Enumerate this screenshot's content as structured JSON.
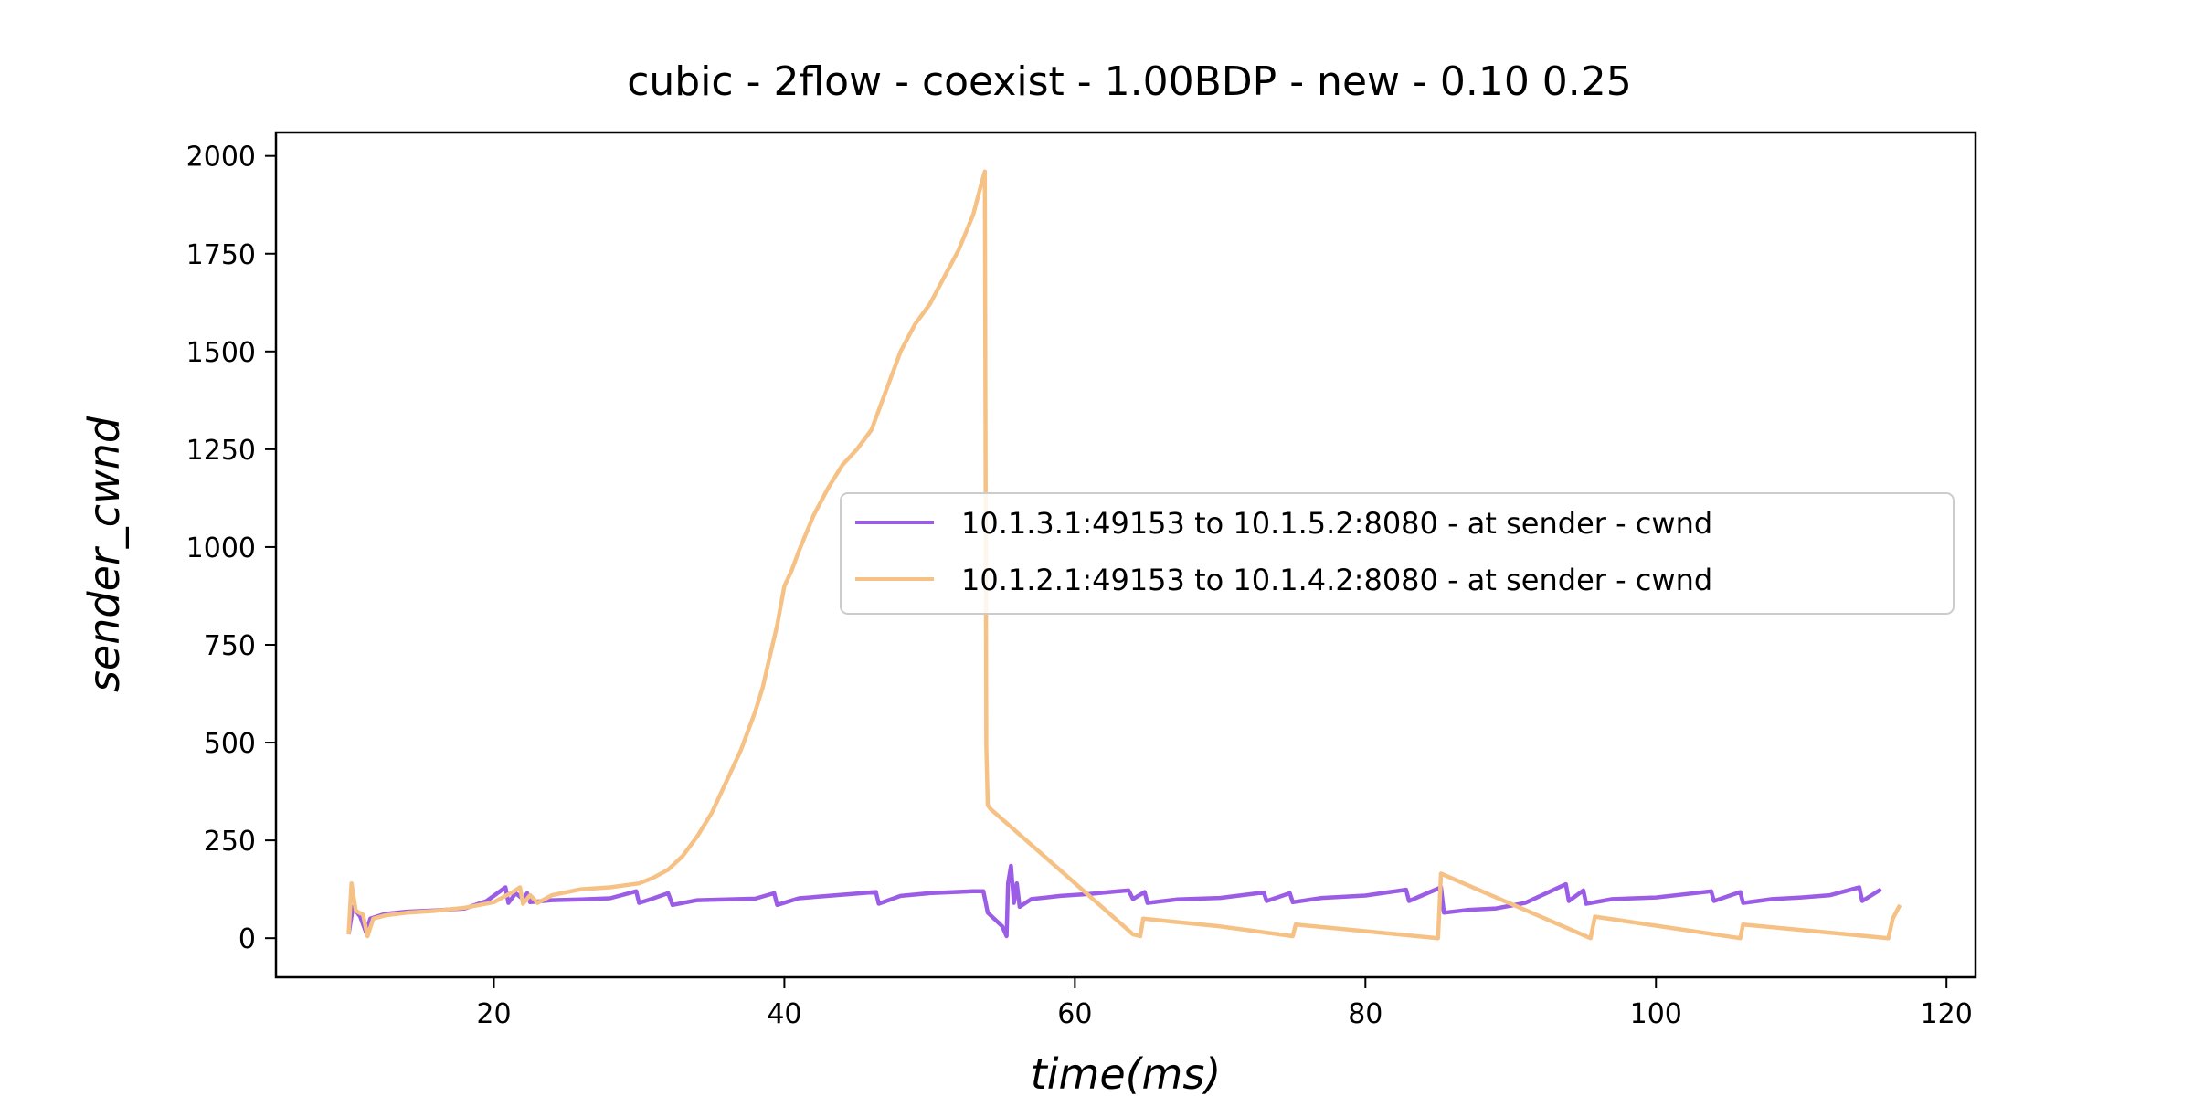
{
  "chart_data": {
    "type": "line",
    "title": "cubic - 2flow - coexist - 1.00BDP - new - 0.10 0.25",
    "xlabel": "time(ms)",
    "ylabel": "sender_cwnd",
    "xlim": [
      5,
      122
    ],
    "ylim": [
      -100,
      2060
    ],
    "xticks": [
      20,
      40,
      60,
      80,
      100,
      120
    ],
    "yticks": [
      0,
      250,
      500,
      750,
      1000,
      1250,
      1500,
      1750,
      2000
    ],
    "grid": false,
    "legend_position": "center-right",
    "series": [
      {
        "name": "10.1.3.1:49153 to 10.1.5.2:8080 - at sender - cwnd",
        "color": "#9b5de5",
        "points": [
          [
            10.0,
            10
          ],
          [
            10.3,
            80
          ],
          [
            10.8,
            55
          ],
          [
            11.2,
            15
          ],
          [
            11.5,
            50
          ],
          [
            12.5,
            62
          ],
          [
            14,
            68
          ],
          [
            16,
            71
          ],
          [
            18,
            76
          ],
          [
            19.5,
            95
          ],
          [
            20.8,
            130
          ],
          [
            21.0,
            90
          ],
          [
            21.5,
            115
          ],
          [
            22.0,
            100
          ],
          [
            22.3,
            115
          ],
          [
            22.5,
            92
          ],
          [
            24,
            97
          ],
          [
            26,
            99
          ],
          [
            28,
            102
          ],
          [
            29.8,
            120
          ],
          [
            30.0,
            90
          ],
          [
            31,
            102
          ],
          [
            32,
            115
          ],
          [
            32.3,
            85
          ],
          [
            34,
            97
          ],
          [
            36,
            99
          ],
          [
            38,
            101
          ],
          [
            39.3,
            115
          ],
          [
            39.5,
            85
          ],
          [
            41,
            102
          ],
          [
            43,
            108
          ],
          [
            46.3,
            118
          ],
          [
            46.5,
            88
          ],
          [
            48,
            108
          ],
          [
            50,
            115
          ],
          [
            53,
            120
          ],
          [
            53.5,
            120
          ],
          [
            53.7,
            120
          ],
          [
            54.0,
            65
          ],
          [
            55.0,
            30
          ],
          [
            55.3,
            5
          ],
          [
            55.4,
            140
          ],
          [
            55.6,
            185
          ],
          [
            55.8,
            90
          ],
          [
            56.0,
            140
          ],
          [
            56.2,
            80
          ],
          [
            57,
            100
          ],
          [
            59,
            108
          ],
          [
            61,
            113
          ],
          [
            63,
            120
          ],
          [
            63.7,
            122
          ],
          [
            64.0,
            100
          ],
          [
            64.8,
            118
          ],
          [
            65.0,
            90
          ],
          [
            67,
            99
          ],
          [
            70,
            103
          ],
          [
            73,
            117
          ],
          [
            73.2,
            95
          ],
          [
            74.8,
            115
          ],
          [
            75.0,
            92
          ],
          [
            77,
            103
          ],
          [
            80,
            109
          ],
          [
            82.8,
            124
          ],
          [
            83.0,
            95
          ],
          [
            85.2,
            130
          ],
          [
            85.4,
            65
          ],
          [
            87,
            72
          ],
          [
            89,
            76
          ],
          [
            91,
            90
          ],
          [
            93.8,
            138
          ],
          [
            94.0,
            95
          ],
          [
            95.0,
            122
          ],
          [
            95.2,
            88
          ],
          [
            97,
            100
          ],
          [
            100,
            104
          ],
          [
            103.8,
            120
          ],
          [
            104.0,
            95
          ],
          [
            105.8,
            118
          ],
          [
            106.0,
            90
          ],
          [
            108,
            100
          ],
          [
            110,
            104
          ],
          [
            112,
            110
          ],
          [
            114.0,
            130
          ],
          [
            114.2,
            95
          ],
          [
            115.5,
            125
          ]
        ]
      },
      {
        "name": "10.1.2.1:49153 to 10.1.4.2:8080 - at sender - cwnd",
        "color": "#f6c185",
        "points": [
          [
            10.0,
            10
          ],
          [
            10.2,
            140
          ],
          [
            10.5,
            70
          ],
          [
            11.0,
            60
          ],
          [
            11.3,
            5
          ],
          [
            11.7,
            50
          ],
          [
            12.5,
            58
          ],
          [
            14,
            65
          ],
          [
            16,
            70
          ],
          [
            18,
            78
          ],
          [
            20,
            92
          ],
          [
            21.3,
            118
          ],
          [
            21.8,
            130
          ],
          [
            22.0,
            88
          ],
          [
            22.5,
            110
          ],
          [
            23,
            90
          ],
          [
            24,
            110
          ],
          [
            26,
            125
          ],
          [
            28,
            130
          ],
          [
            30,
            140
          ],
          [
            31,
            155
          ],
          [
            32,
            175
          ],
          [
            33,
            210
          ],
          [
            34,
            260
          ],
          [
            35,
            320
          ],
          [
            36,
            400
          ],
          [
            37,
            480
          ],
          [
            38,
            580
          ],
          [
            38.5,
            640
          ],
          [
            39,
            720
          ],
          [
            39.5,
            800
          ],
          [
            40,
            900
          ],
          [
            40.5,
            940
          ],
          [
            41,
            990
          ],
          [
            42,
            1080
          ],
          [
            43,
            1150
          ],
          [
            44,
            1210
          ],
          [
            45,
            1250
          ],
          [
            46,
            1300
          ],
          [
            47,
            1400
          ],
          [
            48,
            1500
          ],
          [
            49,
            1570
          ],
          [
            50,
            1620
          ],
          [
            51,
            1690
          ],
          [
            52,
            1760
          ],
          [
            53,
            1850
          ],
          [
            53.5,
            1920
          ],
          [
            53.8,
            1960
          ],
          [
            53.9,
            490
          ],
          [
            54.0,
            340
          ],
          [
            54.2,
            330
          ],
          [
            64.0,
            10
          ],
          [
            64.5,
            5
          ],
          [
            64.7,
            50
          ],
          [
            70,
            30
          ],
          [
            75.0,
            5
          ],
          [
            75.2,
            35
          ],
          [
            85.0,
            0
          ],
          [
            85.2,
            165
          ],
          [
            95.5,
            0
          ],
          [
            95.8,
            55
          ],
          [
            105.8,
            0
          ],
          [
            106.0,
            35
          ],
          [
            116.0,
            0
          ],
          [
            116.3,
            50
          ],
          [
            116.8,
            85
          ]
        ]
      }
    ]
  }
}
